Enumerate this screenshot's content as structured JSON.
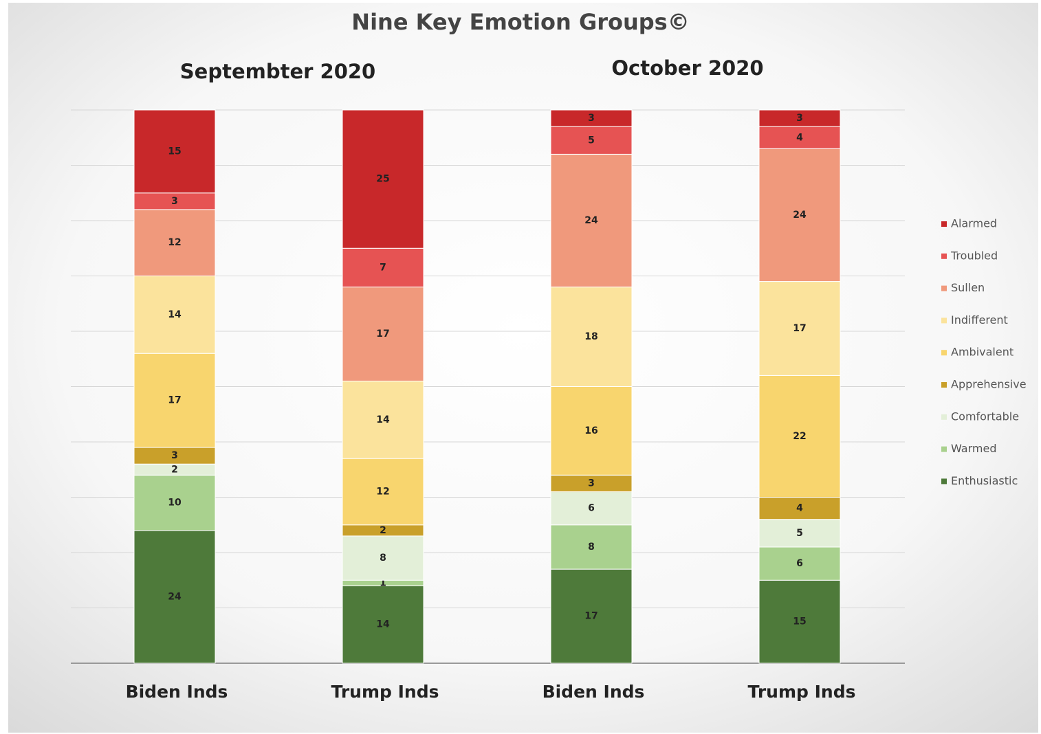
{
  "chart_data": {
    "type": "stacked_bar_percent",
    "title": "Nine Key Emotion Groups©",
    "group_labels": [
      "Septembter 2020",
      "October 2020"
    ],
    "categories": [
      "Biden Inds",
      "Trump Inds",
      "Biden Inds",
      "Trump Inds"
    ],
    "series": [
      {
        "name": "Enthusiastic",
        "color": "#4e7a3a",
        "values": [
          24,
          14,
          17,
          15
        ]
      },
      {
        "name": "Warmed",
        "color": "#a9d18e",
        "values": [
          10,
          1,
          8,
          6
        ]
      },
      {
        "name": "Comfortable",
        "color": "#e3efd8",
        "values": [
          2,
          8,
          6,
          5
        ]
      },
      {
        "name": "Apprehensive",
        "color": "#c9a02a",
        "values": [
          3,
          2,
          3,
          4
        ]
      },
      {
        "name": "Ambivalent",
        "color": "#f8d56e",
        "values": [
          17,
          12,
          16,
          22
        ]
      },
      {
        "name": "Indifferent",
        "color": "#fbe39c",
        "values": [
          14,
          14,
          18,
          17
        ]
      },
      {
        "name": "Sullen",
        "color": "#f0997c",
        "values": [
          12,
          17,
          24,
          24
        ]
      },
      {
        "name": "Troubled",
        "color": "#e65353",
        "values": [
          3,
          7,
          5,
          4
        ]
      },
      {
        "name": "Alarmed",
        "color": "#c8282a",
        "values": [
          15,
          25,
          3,
          3
        ]
      }
    ],
    "ylim": [
      0,
      100
    ],
    "yticks": [
      0,
      10,
      20,
      30,
      40,
      50,
      60,
      70,
      80,
      90,
      100
    ],
    "grid": true,
    "legend": "right"
  }
}
